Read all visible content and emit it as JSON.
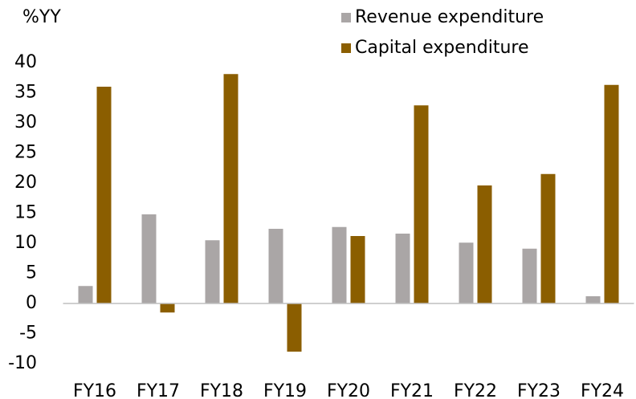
{
  "chart_data": {
    "type": "bar",
    "y_label": "%YY",
    "categories": [
      "FY16",
      "FY17",
      "FY18",
      "FY19",
      "FY20",
      "FY21",
      "FY22",
      "FY23",
      "FY24"
    ],
    "series": [
      {
        "name": "Revenue expenditure",
        "color": "#aaa6a6",
        "values": [
          2.9,
          14.8,
          10.5,
          12.4,
          12.7,
          11.6,
          10.1,
          9.1,
          1.2
        ]
      },
      {
        "name": "Capital expenditure",
        "color": "#8b5e00",
        "values": [
          36,
          -1.5,
          38.1,
          -8,
          11.2,
          32.9,
          19.6,
          21.5,
          36.3
        ]
      }
    ],
    "ylim": [
      -10,
      40
    ],
    "yticks": [
      -10,
      -5,
      0,
      5,
      10,
      15,
      20,
      25,
      30,
      35,
      40
    ],
    "grid": false
  }
}
